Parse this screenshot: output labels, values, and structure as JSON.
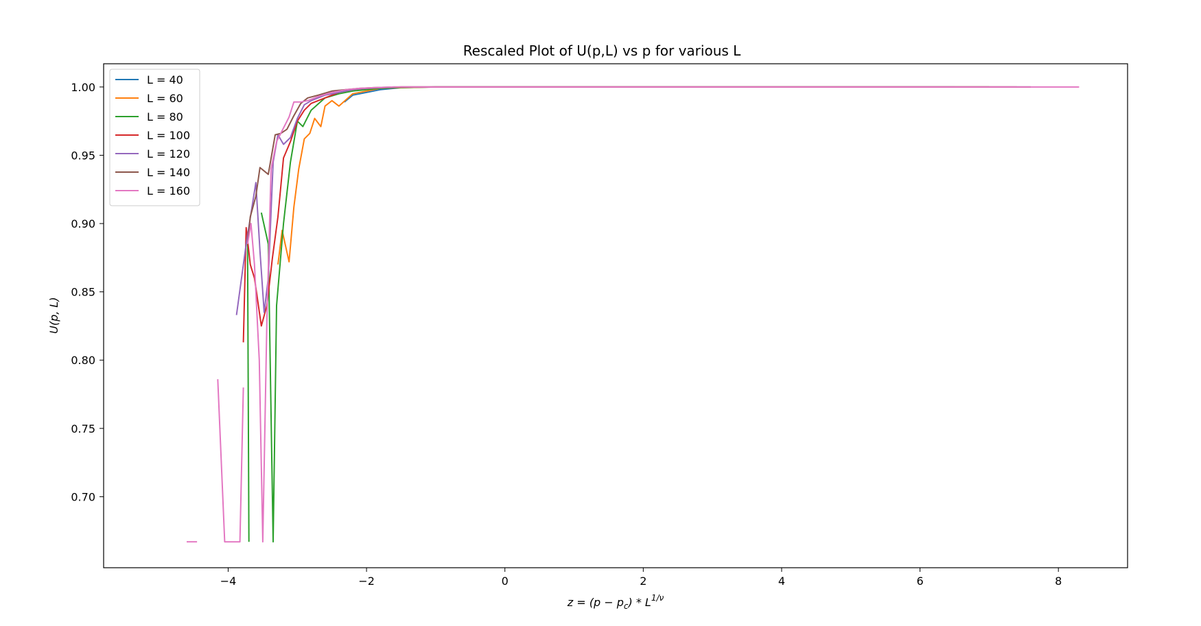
{
  "chart_data": {
    "type": "line",
    "title": "Rescaled Plot of U(p,L) vs p for various L",
    "xlabel": "z = (p − p",
    "xlabel_sub": "c",
    "xlabel_rest": ") * L",
    "xlabel_sup": "1/ν",
    "ylabel": "U(p, L)",
    "xlim": [
      -5.8,
      9.0
    ],
    "ylim": [
      0.648,
      1.017
    ],
    "xticks": [
      -4,
      -2,
      0,
      2,
      4,
      6,
      8
    ],
    "xtick_labels": [
      "−4",
      "−2",
      "0",
      "2",
      "4",
      "6",
      "8"
    ],
    "yticks": [
      0.7,
      0.75,
      0.8,
      0.85,
      0.9,
      0.95,
      1.0
    ],
    "ytick_labels": [
      "0.70",
      "0.75",
      "0.80",
      "0.85",
      "0.90",
      "0.95",
      "1.00"
    ],
    "grid": false,
    "legend_position": "top-left",
    "series": [
      {
        "name": "L = 40",
        "color": "#1f77b4",
        "x": [
          -2.32,
          -2.2,
          -2.0,
          -1.8,
          -1.5,
          -1.0,
          0,
          2,
          4,
          6,
          6.5
        ],
        "y": [
          0.989,
          0.994,
          0.996,
          0.998,
          0.9995,
          1.0,
          1.0,
          1.0,
          1.0,
          1.0,
          1.0
        ]
      },
      {
        "name": "L = 60",
        "color": "#ff7f0e",
        "x": [
          -3.28,
          -3.22,
          -3.12,
          -3.05,
          -2.98,
          -2.9,
          -2.82,
          -2.75,
          -2.66,
          -2.6,
          -2.5,
          -2.4,
          -2.2,
          -2.0,
          -1.8,
          -1.5,
          -1.0,
          0,
          2,
          4,
          6,
          7.0
        ],
        "y": [
          0.87,
          0.895,
          0.872,
          0.912,
          0.94,
          0.962,
          0.966,
          0.977,
          0.971,
          0.986,
          0.99,
          0.986,
          0.995,
          0.997,
          0.999,
          0.9995,
          1.0,
          1.0,
          1.0,
          1.0,
          1.0,
          1.0
        ]
      },
      {
        "name": "L = 80",
        "color": "#2ca02c",
        "x": [
          -3.52,
          -3.42,
          -3.35,
          -3.3,
          -3.2,
          -3.1,
          -3.0,
          -2.92,
          -2.8,
          -2.6,
          -2.4,
          -2.2,
          -2.0,
          -1.8,
          -1.5,
          -1.0,
          0,
          2,
          4,
          6,
          7.0
        ],
        "y": [
          0.908,
          0.885,
          0.667,
          0.84,
          0.9,
          0.945,
          0.975,
          0.971,
          0.983,
          0.992,
          0.995,
          0.997,
          0.998,
          0.999,
          0.9997,
          1.0,
          1.0,
          1.0,
          1.0,
          1.0,
          1.0
        ],
        "x2": [
          -3.72,
          -3.7
        ],
        "y2": [
          0.888,
          0.667
        ]
      },
      {
        "name": "L = 100",
        "color": "#d62728",
        "x": [
          -3.78,
          -3.74,
          -3.68,
          -3.62,
          -3.52,
          -3.44,
          -3.36,
          -3.28,
          -3.2,
          -3.1,
          -3.0,
          -2.9,
          -2.8,
          -2.6,
          -2.4,
          -2.2,
          -2.0,
          -1.8,
          -1.5,
          -1.0,
          0,
          2,
          4,
          6,
          7.4
        ],
        "y": [
          0.813,
          0.897,
          0.87,
          0.86,
          0.825,
          0.84,
          0.875,
          0.905,
          0.948,
          0.96,
          0.975,
          0.983,
          0.988,
          0.992,
          0.996,
          0.998,
          0.999,
          0.9995,
          1.0,
          1.0,
          1.0,
          1.0,
          1.0,
          1.0,
          1.0
        ]
      },
      {
        "name": "L = 120",
        "color": "#9467bd",
        "x": [
          -3.88,
          -3.74,
          -3.6,
          -3.54,
          -3.48,
          -3.42,
          -3.35,
          -3.28,
          -3.2,
          -3.1,
          -3.0,
          -2.9,
          -2.8,
          -2.6,
          -2.4,
          -2.2,
          -2.0,
          -1.8,
          -1.5,
          -1.0,
          0,
          2,
          4,
          6,
          7.6
        ],
        "y": [
          0.833,
          0.885,
          0.93,
          0.88,
          0.835,
          0.86,
          0.945,
          0.965,
          0.958,
          0.963,
          0.977,
          0.987,
          0.99,
          0.994,
          0.996,
          0.998,
          0.999,
          0.9995,
          1.0,
          1.0,
          1.0,
          1.0,
          1.0,
          1.0,
          1.0
        ]
      },
      {
        "name": "L = 140",
        "color": "#8c564b",
        "x": [
          -3.72,
          -3.68,
          -3.6,
          -3.54,
          -3.42,
          -3.32,
          -3.24,
          -3.15,
          -3.05,
          -2.95,
          -2.85,
          -2.7,
          -2.5,
          -2.3,
          -2.1,
          -1.9,
          -1.6,
          -1.2,
          0,
          2,
          4,
          6,
          7.6
        ],
        "y": [
          0.885,
          0.905,
          0.92,
          0.941,
          0.936,
          0.965,
          0.966,
          0.969,
          0.979,
          0.988,
          0.992,
          0.994,
          0.997,
          0.998,
          0.999,
          0.9995,
          1.0,
          1.0,
          1.0,
          1.0,
          1.0,
          1.0,
          1.0
        ]
      },
      {
        "name": "L = 160",
        "color": "#e377c2",
        "x": [
          -3.72,
          -3.67,
          -3.62,
          -3.55,
          -3.5,
          -3.44,
          -3.38,
          -3.3,
          -3.22,
          -3.12,
          -3.05,
          -2.95,
          -2.85,
          -2.7,
          -2.5,
          -2.3,
          -2.1,
          -1.9,
          -1.6,
          -1.2,
          0,
          2,
          4,
          6,
          8.3
        ],
        "y": [
          0.885,
          0.9,
          0.87,
          0.8,
          0.667,
          0.83,
          0.94,
          0.96,
          0.968,
          0.978,
          0.989,
          0.989,
          0.99,
          0.993,
          0.996,
          0.998,
          0.999,
          0.9995,
          1.0,
          1.0,
          1.0,
          1.0,
          1.0,
          1.0,
          1.0
        ],
        "x2": [
          -4.15,
          -4.05,
          -3.98,
          -3.87,
          -3.83,
          -3.78
        ],
        "y2": [
          0.786,
          0.667,
          0.667,
          0.667,
          0.667,
          0.78
        ],
        "x3": [
          -4.6,
          -4.45
        ],
        "y3": [
          0.667,
          0.667
        ]
      }
    ]
  }
}
